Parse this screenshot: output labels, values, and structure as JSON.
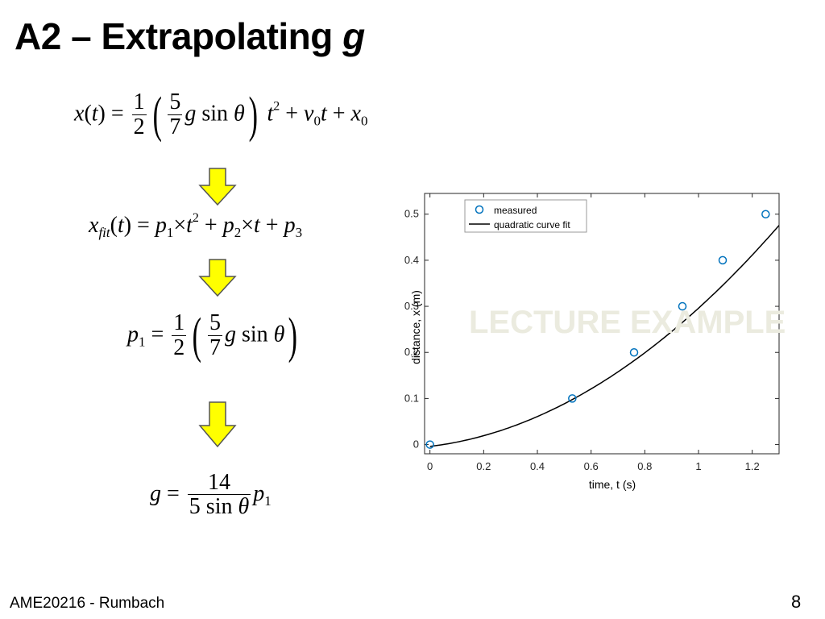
{
  "slide": {
    "title_main": "A2 – Extrapolating ",
    "title_var": "g",
    "footer": "AME20216 - Rumbach",
    "page_number": "8",
    "watermark": "LECTURE EXAMPLE"
  },
  "equations": {
    "eq1": {
      "lhs": "x(t) = ",
      "half_num": "1",
      "half_den": "2",
      "frac_num": "5",
      "frac_den": "7",
      "gsin": "g sin θ",
      "rhs": "t² + v₀t + x₀"
    },
    "eq2": {
      "text": "x_fit(t) = p₁×t² + p₂×t + p₃"
    },
    "eq3": {
      "lhs": "p₁ = ",
      "half_num": "1",
      "half_den": "2",
      "frac_num": "5",
      "frac_den": "7",
      "gsin": "g sin θ"
    },
    "eq4": {
      "lhs": "g = ",
      "num": "14",
      "den": "5 sin θ",
      "rhs": "p₁"
    }
  },
  "colors": {
    "arrow_fill": "#ffff00",
    "marker": "#0072bd",
    "fit_line": "#000000",
    "watermark": "#ebebdf"
  },
  "chart_data": {
    "type": "scatter",
    "xlabel": "time, t (s)",
    "ylabel": "distance, x (m)",
    "xlim": [
      -0.02,
      1.3
    ],
    "ylim": [
      -0.02,
      0.545
    ],
    "xticks": [
      0,
      0.2,
      0.4,
      0.6,
      0.8,
      1,
      1.2
    ],
    "xtick_labels": [
      "0",
      "0.2",
      "0.4",
      "0.6",
      "0.8",
      "1",
      "1.2"
    ],
    "yticks": [
      0,
      0.1,
      0.2,
      0.3,
      0.4,
      0.5
    ],
    "ytick_labels": [
      "0",
      "0.1",
      "0.2",
      "0.3",
      "0.4",
      "0.5"
    ],
    "legend_position": "top-left",
    "series": [
      {
        "name": "measured",
        "kind": "markers",
        "marker": "circle",
        "x": [
          0,
          0.53,
          0.76,
          0.94,
          1.09,
          1.25
        ],
        "y": [
          0,
          0.1,
          0.2,
          0.3,
          0.4,
          0.5
        ]
      },
      {
        "name": "quadratic curve fit",
        "kind": "line",
        "coefficients": {
          "p1": 0.23,
          "p2": 0.07,
          "p3": -0.004
        },
        "x_range": [
          0,
          1.3
        ]
      }
    ]
  }
}
